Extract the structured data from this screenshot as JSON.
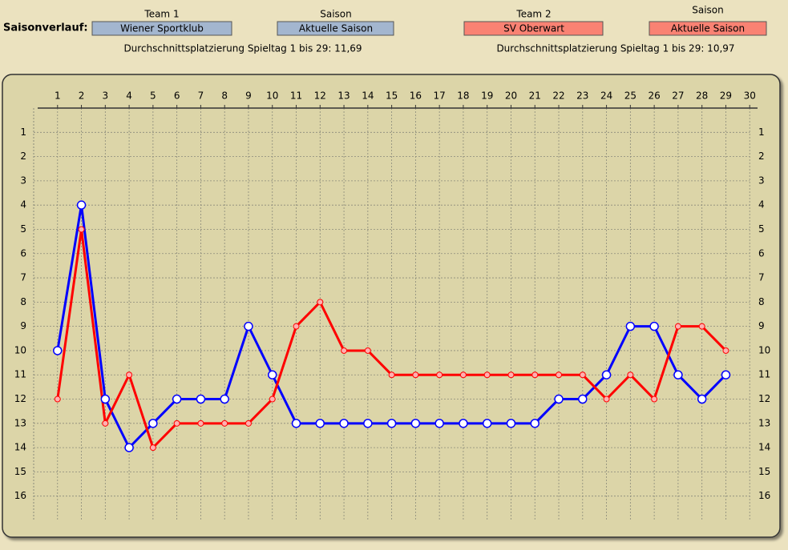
{
  "header": {
    "title": "Saisonverlauf:",
    "team1_label": "Team 1",
    "season1_label": "Saison",
    "season1": "Aktuelle Saison",
    "team2_label": "Team 2",
    "season2_label": "Saison",
    "season2": "Aktuelle Saison",
    "average1": "Durchschnittsplatzierung Spieltag 1 bis 29: 11,69",
    "average2": "Durchschnittsplatzierung Spieltag 1 bis 29: 10,97"
  },
  "chart_data": {
    "type": "line",
    "x": [
      1,
      2,
      3,
      4,
      5,
      6,
      7,
      8,
      9,
      10,
      11,
      12,
      13,
      14,
      15,
      16,
      17,
      18,
      19,
      20,
      21,
      22,
      23,
      24,
      25,
      26,
      27,
      28,
      29
    ],
    "series": [
      {
        "name": "Wiener Sportklub",
        "color": "#0000ff",
        "values": [
          10,
          4,
          12,
          14,
          13,
          12,
          12,
          12,
          9,
          11,
          13,
          13,
          13,
          13,
          13,
          13,
          13,
          13,
          13,
          13,
          13,
          12,
          12,
          11,
          9,
          9,
          11,
          12,
          11
        ]
      },
      {
        "name": "SV Oberwart",
        "color": "#ff0000",
        "values": [
          12,
          5,
          13,
          11,
          14,
          13,
          13,
          13,
          13,
          12,
          9,
          8,
          10,
          10,
          11,
          11,
          11,
          11,
          11,
          11,
          11,
          11,
          11,
          12,
          11,
          12,
          9,
          9,
          10
        ]
      }
    ],
    "xlim": [
      0,
      31
    ],
    "xticks": [
      1,
      2,
      3,
      4,
      5,
      6,
      7,
      8,
      9,
      10,
      11,
      12,
      13,
      14,
      15,
      16,
      17,
      18,
      19,
      20,
      21,
      22,
      23,
      24,
      25,
      26,
      27,
      28,
      29,
      30
    ],
    "ylim": [
      17,
      0
    ],
    "yticks": [
      1,
      2,
      3,
      4,
      5,
      6,
      7,
      8,
      9,
      10,
      11,
      12,
      13,
      14,
      15,
      16
    ],
    "grid": true
  }
}
